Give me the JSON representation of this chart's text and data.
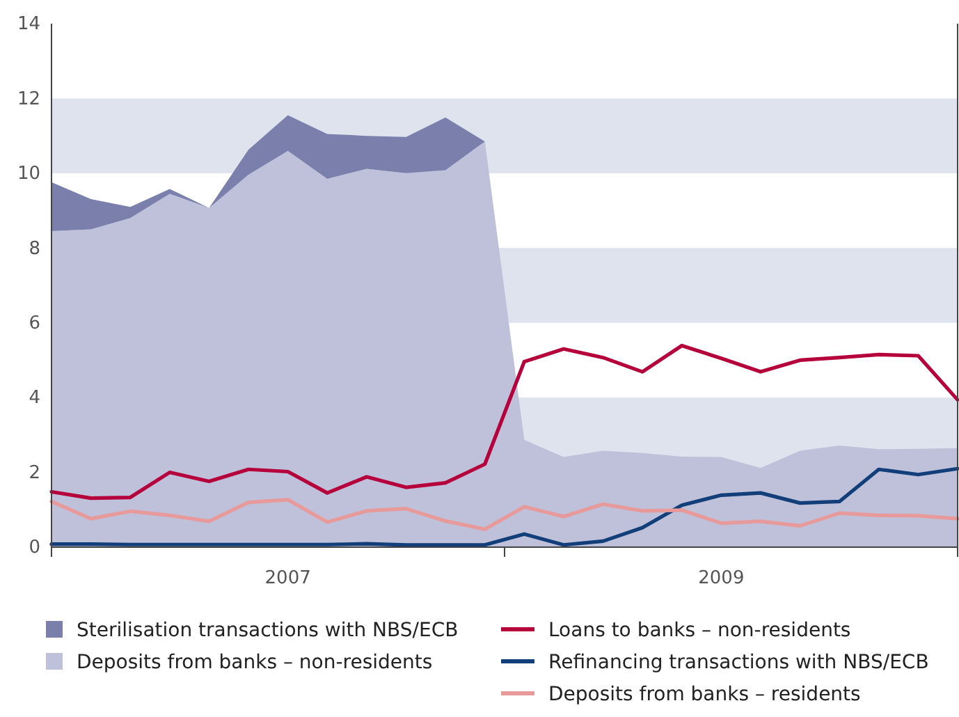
{
  "chart_data": {
    "type": "line",
    "categories": [
      null,
      null,
      null,
      null,
      null,
      null,
      "2007",
      null,
      null,
      null,
      null,
      null,
      null,
      null,
      null,
      null,
      null,
      "2009",
      null,
      null,
      null,
      null,
      null,
      null
    ],
    "ylim": [
      0,
      14
    ],
    "yticks": [
      0,
      2,
      4,
      6,
      8,
      10,
      12,
      14
    ],
    "grid": false,
    "stacked": true,
    "legend": "bottom",
    "bands": [
      {
        "axis": "y",
        "from": 2,
        "to": 4,
        "color": "#dee3ee"
      },
      {
        "axis": "y",
        "from": 6,
        "to": 8,
        "color": "#dee3ee"
      },
      {
        "axis": "y",
        "from": 10,
        "to": 12,
        "color": "#dee3ee"
      }
    ],
    "series": [
      {
        "name": "Deposits from banks – non-residents",
        "type": "area",
        "color": "#bec1d9",
        "values": [
          8.45,
          8.5,
          8.8,
          9.45,
          9.07,
          9.96,
          10.6,
          9.85,
          10.12,
          10.0,
          10.08,
          10.85,
          2.87,
          2.41,
          2.58,
          2.52,
          2.42,
          2.41,
          2.12,
          2.58,
          2.72,
          2.62,
          2.63,
          2.65
        ]
      },
      {
        "name": "Sterilisation transactions with NBS/ECB",
        "type": "area",
        "color": "#7a80ab",
        "values": [
          1.31,
          0.81,
          0.3,
          0.13,
          0,
          0.67,
          0.95,
          1.2,
          0.88,
          0.97,
          1.41,
          0,
          0,
          0,
          0,
          0,
          0,
          0,
          0,
          0,
          0,
          0,
          0,
          0
        ]
      },
      {
        "name": "Loans to banks – non-residents",
        "color": "#b5003c",
        "values": [
          1.48,
          1.31,
          1.33,
          2.0,
          1.76,
          2.08,
          2.02,
          1.45,
          1.88,
          1.6,
          1.72,
          2.22,
          4.96,
          5.3,
          5.07,
          4.69,
          5.39,
          5.05,
          4.69,
          5.0,
          5.07,
          5.15,
          5.12,
          3.94
        ]
      },
      {
        "name": "Refinancing transactions with NBS/ECB",
        "color": "#123f7a",
        "values": [
          0.08,
          0.08,
          0.07,
          0.07,
          0.07,
          0.07,
          0.07,
          0.07,
          0.09,
          0.06,
          0.06,
          0.06,
          0.35,
          0.06,
          0.16,
          0.52,
          1.12,
          1.39,
          1.45,
          1.18,
          1.22,
          2.08,
          1.94,
          2.1
        ]
      },
      {
        "name": "Deposits from banks – residents",
        "color": "#e8999a",
        "values": [
          1.22,
          0.76,
          0.96,
          0.85,
          0.69,
          1.2,
          1.27,
          0.67,
          0.97,
          1.03,
          0.7,
          0.48,
          1.08,
          0.82,
          1.15,
          0.97,
          0.99,
          0.64,
          0.69,
          0.57,
          0.91,
          0.85,
          0.84,
          0.76
        ]
      }
    ]
  }
}
